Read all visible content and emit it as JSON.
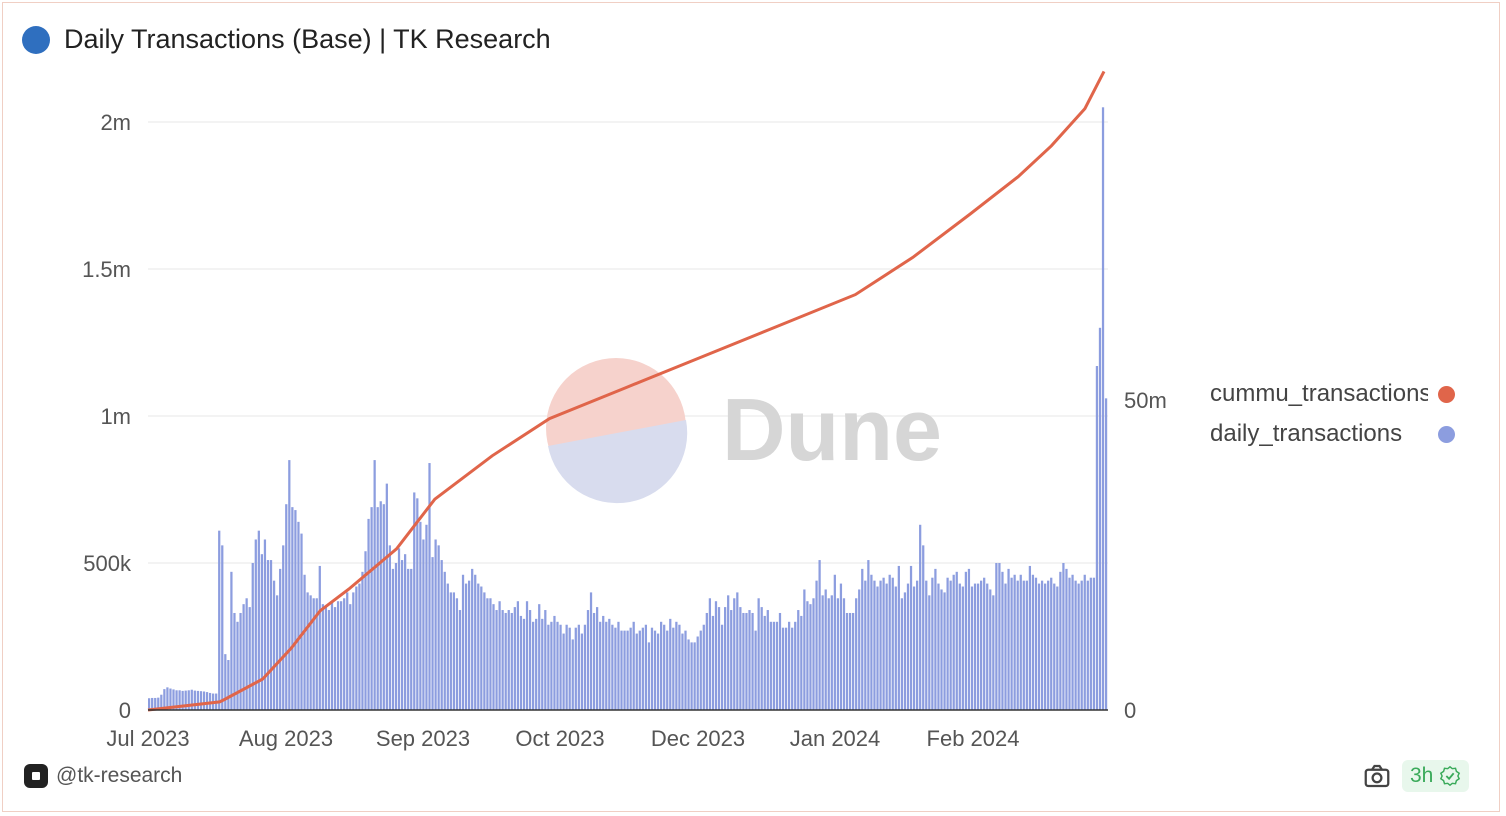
{
  "header": {
    "title": "Daily Transactions (Base) | TK Research",
    "dot_color": "#2f6fbf"
  },
  "watermark": {
    "text": "Dune"
  },
  "legend": {
    "items": [
      {
        "label": "cummu_transactions",
        "color": "#e0654a"
      },
      {
        "label": "daily_transactions",
        "color": "#8c9ddf"
      }
    ]
  },
  "footer": {
    "handle": "@tk-research",
    "age": "3h"
  },
  "chart_data": {
    "type": "bar+line",
    "title": "Daily Transactions (Base) | TK Research",
    "x_tick_labels": [
      "Jul 2023",
      "Aug 2023",
      "Sep 2023",
      "Oct 2023",
      "Dec 2023",
      "Jan 2024",
      "Feb 2024"
    ],
    "y_left": {
      "ticks": [
        0,
        500000,
        1000000,
        1500000,
        2000000
      ],
      "tick_labels": [
        "0",
        "500k",
        "1m",
        "1.5m",
        "2m"
      ]
    },
    "y_right": {
      "ticks": [
        0,
        50000000
      ],
      "tick_labels": [
        "0",
        "50m"
      ]
    },
    "series": [
      {
        "name": "daily_transactions",
        "type": "bar",
        "axis": "left",
        "color": "#8c9ddf",
        "values": [
          40000,
          41000,
          41000,
          42000,
          52000,
          71000,
          77000,
          73000,
          70000,
          67000,
          67000,
          65000,
          66000,
          67000,
          69000,
          66000,
          65000,
          64000,
          63000,
          61000,
          58000,
          56000,
          56000,
          610000,
          560000,
          190000,
          170000,
          470000,
          330000,
          300000,
          330000,
          360000,
          380000,
          350000,
          500000,
          580000,
          610000,
          530000,
          580000,
          510000,
          510000,
          440000,
          390000,
          480000,
          560000,
          700000,
          850000,
          690000,
          680000,
          640000,
          600000,
          460000,
          400000,
          390000,
          380000,
          380000,
          490000,
          360000,
          350000,
          340000,
          370000,
          350000,
          370000,
          370000,
          380000,
          400000,
          360000,
          400000,
          420000,
          430000,
          470000,
          540000,
          650000,
          690000,
          850000,
          690000,
          710000,
          700000,
          770000,
          560000,
          480000,
          500000,
          550000,
          510000,
          530000,
          480000,
          480000,
          740000,
          720000,
          640000,
          580000,
          630000,
          840000,
          520000,
          580000,
          560000,
          510000,
          470000,
          430000,
          400000,
          400000,
          380000,
          340000,
          460000,
          430000,
          440000,
          480000,
          460000,
          430000,
          420000,
          400000,
          380000,
          380000,
          360000,
          340000,
          370000,
          340000,
          330000,
          340000,
          330000,
          350000,
          370000,
          320000,
          310000,
          370000,
          340000,
          300000,
          310000,
          360000,
          310000,
          340000,
          290000,
          300000,
          320000,
          300000,
          290000,
          260000,
          290000,
          280000,
          240000,
          280000,
          290000,
          260000,
          290000,
          340000,
          400000,
          330000,
          350000,
          300000,
          320000,
          300000,
          310000,
          290000,
          280000,
          300000,
          270000,
          270000,
          270000,
          280000,
          300000,
          260000,
          270000,
          280000,
          290000,
          230000,
          280000,
          270000,
          260000,
          300000,
          290000,
          270000,
          310000,
          280000,
          300000,
          290000,
          260000,
          270000,
          240000,
          230000,
          230000,
          250000,
          270000,
          290000,
          330000,
          380000,
          320000,
          370000,
          350000,
          290000,
          350000,
          390000,
          340000,
          380000,
          400000,
          350000,
          330000,
          330000,
          340000,
          330000,
          270000,
          380000,
          350000,
          320000,
          340000,
          300000,
          300000,
          300000,
          330000,
          280000,
          280000,
          300000,
          280000,
          300000,
          340000,
          320000,
          410000,
          370000,
          360000,
          380000,
          440000,
          510000,
          390000,
          410000,
          380000,
          390000,
          460000,
          380000,
          430000,
          380000,
          330000,
          330000,
          330000,
          380000,
          410000,
          480000,
          440000,
          510000,
          460000,
          440000,
          420000,
          440000,
          450000,
          430000,
          460000,
          450000,
          420000,
          490000,
          380000,
          400000,
          430000,
          490000,
          420000,
          440000,
          630000,
          560000,
          440000,
          390000,
          450000,
          480000,
          430000,
          410000,
          400000,
          450000,
          440000,
          460000,
          470000,
          430000,
          420000,
          470000,
          480000,
          420000,
          430000,
          430000,
          440000,
          450000,
          430000,
          410000,
          390000,
          500000,
          500000,
          470000,
          430000,
          480000,
          450000,
          460000,
          440000,
          460000,
          440000,
          440000,
          490000,
          460000,
          450000,
          430000,
          440000,
          430000,
          440000,
          450000,
          430000,
          420000,
          470000,
          500000,
          480000,
          450000,
          460000,
          440000,
          430000,
          440000,
          460000,
          440000,
          450000,
          450000,
          1170000,
          1300000,
          2050000,
          1060000
        ]
      },
      {
        "name": "cummu_transactions",
        "type": "line",
        "axis": "right",
        "color": "#e0654a",
        "x_months": [
          "Jul 2023",
          "Aug 2023",
          "Sep 2023",
          "Oct 2023",
          "Dec 2023",
          "Jan 2024",
          "Feb 2024"
        ],
        "points": [
          [
            0,
            0
          ],
          [
            0.075,
            1300000
          ],
          [
            0.08,
            1700000
          ],
          [
            0.12,
            5000000
          ],
          [
            0.15,
            10000000
          ],
          [
            0.18,
            16000000
          ],
          [
            0.21,
            19500000
          ],
          [
            0.26,
            26000000
          ],
          [
            0.3,
            34000000
          ],
          [
            0.36,
            41000000
          ],
          [
            0.42,
            47000000
          ],
          [
            0.5,
            52000000
          ],
          [
            0.58,
            57000000
          ],
          [
            0.66,
            62000000
          ],
          [
            0.74,
            67000000
          ],
          [
            0.8,
            73000000
          ],
          [
            0.86,
            80000000
          ],
          [
            0.91,
            86000000
          ],
          [
            0.945,
            91000000
          ],
          [
            0.98,
            97000000
          ],
          [
            1.0,
            103000000
          ]
        ]
      }
    ],
    "grid": true,
    "legend_position": "right"
  }
}
